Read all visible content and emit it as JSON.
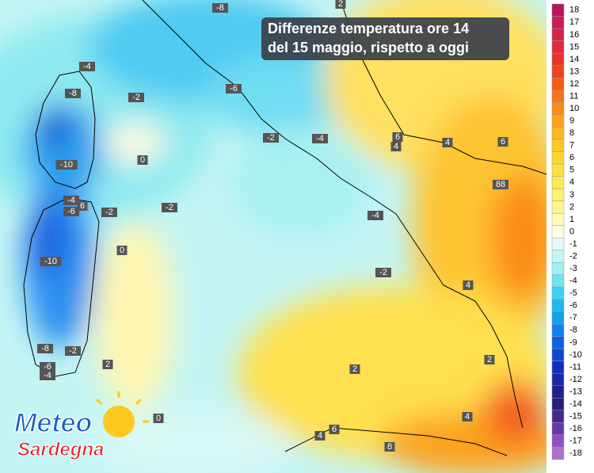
{
  "title_lines": [
    "Differenze temperatura ore 14",
    "del 15 maggio, rispetto a oggi"
  ],
  "logo": {
    "top": "Meteo",
    "bottom": "Sardegna"
  },
  "legend": [
    {
      "label": "18",
      "color": "#b8145e"
    },
    {
      "label": "17",
      "color": "#c81c5a"
    },
    {
      "label": "16",
      "color": "#d8224c"
    },
    {
      "label": "15",
      "color": "#e02a3c"
    },
    {
      "label": "14",
      "color": "#e8322a"
    },
    {
      "label": "13",
      "color": "#f04420"
    },
    {
      "label": "12",
      "color": "#f55c18"
    },
    {
      "label": "11",
      "color": "#f87414"
    },
    {
      "label": "10",
      "color": "#fa8c14"
    },
    {
      "label": "9",
      "color": "#fca21a"
    },
    {
      "label": "8",
      "color": "#fdb820"
    },
    {
      "label": "7",
      "color": "#fec828"
    },
    {
      "label": "6",
      "color": "#ffd630"
    },
    {
      "label": "5",
      "color": "#ffe040"
    },
    {
      "label": "4",
      "color": "#ffe850"
    },
    {
      "label": "3",
      "color": "#fff070"
    },
    {
      "label": "2",
      "color": "#fff590"
    },
    {
      "label": "1",
      "color": "#fffab8"
    },
    {
      "label": "0",
      "color": "#fffee0"
    },
    {
      "label": "-1",
      "color": "#e0fbf8"
    },
    {
      "label": "-2",
      "color": "#bff7f5"
    },
    {
      "label": "-3",
      "color": "#9ff0f2"
    },
    {
      "label": "-4",
      "color": "#70e4f0"
    },
    {
      "label": "-5",
      "color": "#40d0f0"
    },
    {
      "label": "-6",
      "color": "#20b8f0"
    },
    {
      "label": "-7",
      "color": "#10a0f0"
    },
    {
      "label": "-8",
      "color": "#1080f0"
    },
    {
      "label": "-9",
      "color": "#1060e0"
    },
    {
      "label": "-10",
      "color": "#1048d0"
    },
    {
      "label": "-11",
      "color": "#1030c0"
    },
    {
      "label": "-12",
      "color": "#1828a8"
    },
    {
      "label": "-13",
      "color": "#202090"
    },
    {
      "label": "-14",
      "color": "#282078"
    },
    {
      "label": "-15",
      "color": "#482890"
    },
    {
      "label": "-16",
      "color": "#6838a8"
    },
    {
      "label": "-17",
      "color": "#9050c0"
    },
    {
      "label": "-18",
      "color": "#b070d0"
    }
  ],
  "map_labels": [
    "-8",
    "2",
    "-4",
    "-8",
    "-2",
    "-6",
    "-2",
    "-4",
    "6",
    "4",
    "4",
    "6",
    "0",
    "-10",
    "88",
    "-4",
    "-6",
    "6",
    "-2",
    "-2",
    "-4",
    "0",
    "-10",
    "-2",
    "4",
    "-8",
    "-2",
    "2",
    "2",
    "2",
    "-6",
    "-4",
    "0",
    "4",
    "4",
    "6",
    "8"
  ]
}
